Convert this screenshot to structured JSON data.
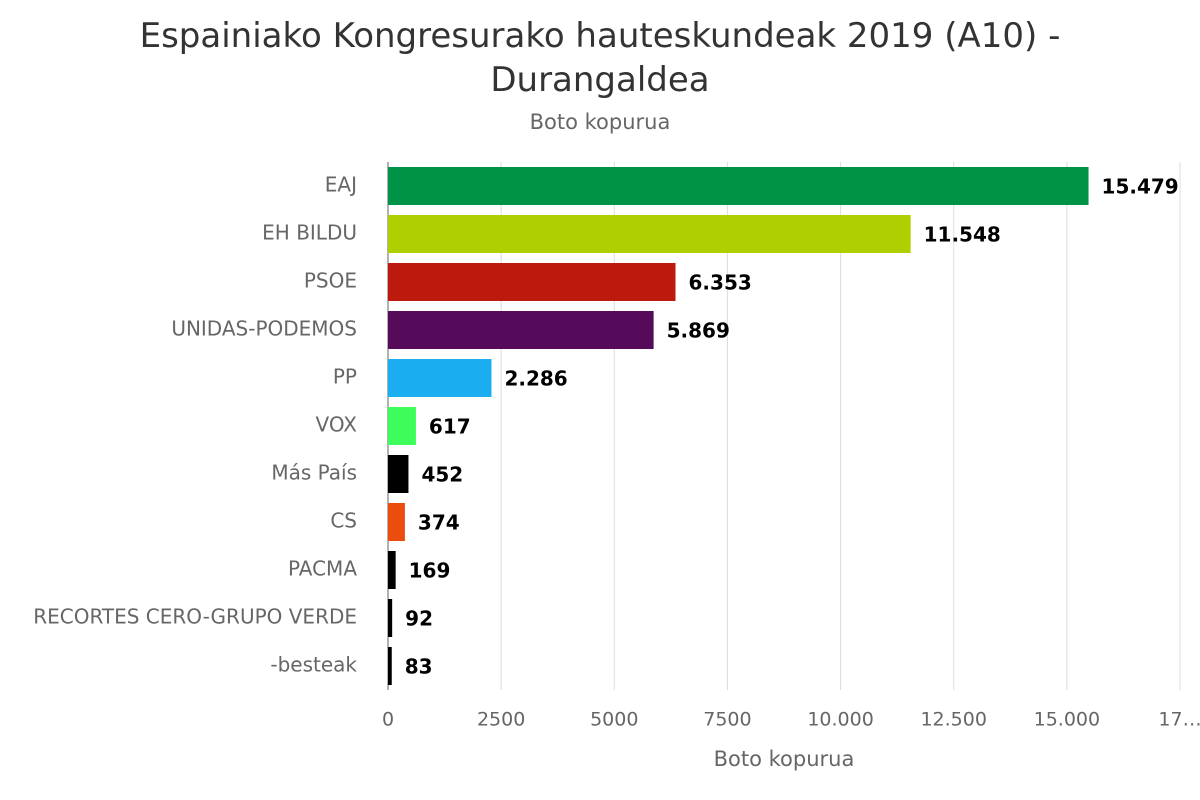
{
  "chart_data": {
    "type": "bar",
    "orientation": "horizontal",
    "title": "Espainiako Kongresurako hauteskundeak 2019 (A10) - Durangaldea",
    "subtitle": "Boto kopurua",
    "x_label": "Boto kopurua",
    "categories": [
      "EAJ",
      "EH BILDU",
      "PSOE",
      "UNIDAS-PODEMOS",
      "PP",
      "VOX",
      "Más País",
      "CS",
      "PACMA",
      "RECORTES CERO-GRUPO VERDE",
      "-besteak"
    ],
    "values": [
      15479,
      11548,
      6353,
      5869,
      2286,
      617,
      452,
      374,
      169,
      92,
      83
    ],
    "value_labels": [
      "15.479",
      "11.548",
      "6.353",
      "5.869",
      "2.286",
      "617",
      "452",
      "374",
      "169",
      "92",
      "83"
    ],
    "colors": [
      "#009245",
      "#b0cf00",
      "#bb1a0c",
      "#560a5a",
      "#1aadf0",
      "#3dfd5b",
      "#000000",
      "#eb4d0f",
      "#000000",
      "#000000",
      "#000000"
    ],
    "xlim": [
      0,
      17500
    ],
    "xticks": [
      0,
      2500,
      5000,
      7500,
      {
        "value": 10000,
        "label": "10.000"
      },
      {
        "value": 12500,
        "label": "12.500"
      },
      {
        "value": 15000,
        "label": "15.000"
      },
      {
        "value": 17500,
        "label": "17…"
      }
    ],
    "grid": true
  }
}
